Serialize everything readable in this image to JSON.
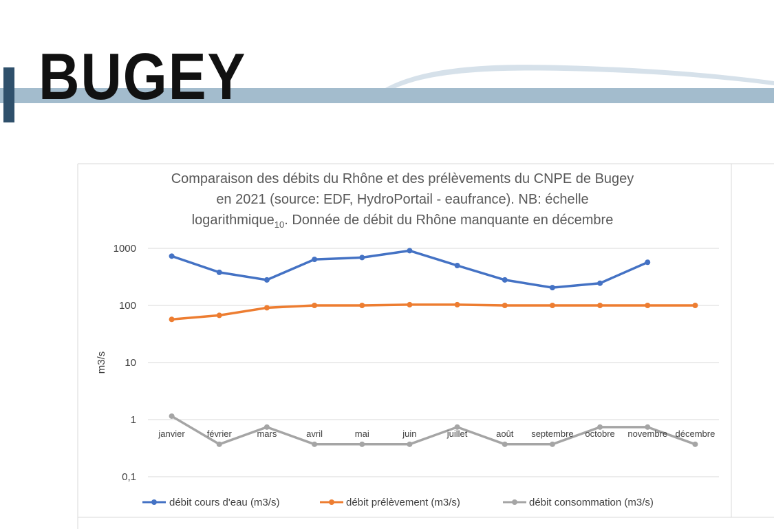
{
  "banner": {
    "title": "BUGEY"
  },
  "colors": {
    "band": "#a3bccd",
    "band_edge": "#2f506b",
    "series": [
      "#4472c4",
      "#ed7d31",
      "#a5a5a5"
    ]
  },
  "chart_data": {
    "type": "line",
    "title_lines": [
      "Comparaison des débits du Rhône et des prélèvements  du CNPE de Bugey",
      "en 2021 (source: EDF, HydroPortail - eaufrance). NB: échelle",
      "logarithmique",
      "10",
      ". Donnée de débit du Rhône manquante en décembre"
    ],
    "ylabel": "m3/s",
    "yscale": "log10",
    "ylim": [
      0.1,
      1000
    ],
    "yticks": [
      "0,1",
      "1",
      "10",
      "100",
      "1000"
    ],
    "grid": true,
    "legend_position": "bottom",
    "categories": [
      "janvier",
      "février",
      "mars",
      "avril",
      "mai",
      "juin",
      "juillet",
      "août",
      "septembre",
      "octobre",
      "novembre",
      "décembre"
    ],
    "series": [
      {
        "name": "débit cours d'eau (m3/s)",
        "values": [
          730,
          380,
          280,
          640,
          690,
          910,
          500,
          280,
          205,
          245,
          570,
          null
        ]
      },
      {
        "name": "débit prélèvement (m3/s)",
        "values": [
          57,
          67,
          91,
          100,
          100,
          103,
          103,
          100,
          100,
          100,
          100,
          100
        ]
      },
      {
        "name": "débit consommation (m3/s)",
        "values": [
          1.15,
          0.37,
          0.74,
          0.37,
          0.37,
          0.37,
          0.74,
          0.37,
          0.37,
          0.74,
          0.74,
          0.37
        ]
      }
    ]
  }
}
